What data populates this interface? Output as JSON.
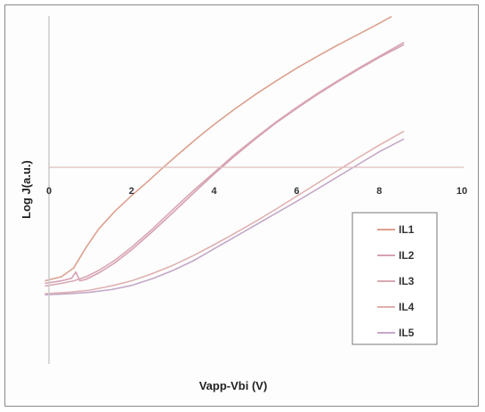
{
  "chart_data": {
    "type": "line",
    "title": "",
    "xlabel": "Vapp-Vbi (V)",
    "ylabel": "Log J(a.u.)",
    "xlim": [
      0,
      10
    ],
    "x_ticks": [
      0,
      2,
      4,
      6,
      8,
      10
    ],
    "x_tick_labels": [
      "0",
      "2",
      "4",
      "6",
      "8",
      "10"
    ],
    "y_ticks_shown": false,
    "y_zero_line": true,
    "grid": false,
    "legend_position": "right-lower",
    "series": [
      {
        "name": "IL1",
        "color": "#dca08e",
        "x": [
          -0.1,
          0.3,
          0.6,
          0.9,
          1.2,
          1.6,
          2.0,
          2.4,
          2.8,
          3.2,
          3.6,
          4.0,
          4.5,
          5.0,
          5.5,
          6.0,
          6.5,
          7.0,
          7.5,
          8.0,
          8.3
        ],
        "y": [
          -2.2,
          -2.12,
          -1.95,
          -1.55,
          -1.2,
          -0.85,
          -0.55,
          -0.27,
          0.02,
          0.3,
          0.57,
          0.83,
          1.13,
          1.41,
          1.67,
          1.92,
          2.15,
          2.37,
          2.58,
          2.79,
          2.92
        ]
      },
      {
        "name": "IL2",
        "color": "#d7a0b4",
        "x": [
          -0.1,
          0.3,
          0.55,
          0.65,
          0.75,
          0.9,
          1.2,
          1.6,
          2.0,
          2.5,
          3.0,
          3.5,
          4.0,
          4.5,
          5.0,
          5.5,
          6.0,
          6.5,
          7.0,
          7.5,
          8.0,
          8.6
        ],
        "y": [
          -2.25,
          -2.2,
          -2.15,
          -2.03,
          -2.2,
          -2.17,
          -2.05,
          -1.85,
          -1.6,
          -1.25,
          -0.88,
          -0.5,
          -0.13,
          0.22,
          0.55,
          0.86,
          1.14,
          1.41,
          1.66,
          1.9,
          2.13,
          2.38
        ]
      },
      {
        "name": "IL3",
        "color": "#d8a8b2",
        "x": [
          -0.1,
          0.3,
          0.6,
          0.9,
          1.2,
          1.6,
          2.0,
          2.5,
          3.0,
          3.5,
          4.0,
          4.5,
          5.0,
          5.5,
          6.0,
          6.5,
          7.0,
          7.5,
          8.0,
          8.6
        ],
        "y": [
          -2.3,
          -2.25,
          -2.2,
          -2.12,
          -2.0,
          -1.8,
          -1.55,
          -1.2,
          -0.82,
          -0.45,
          -0.1,
          0.25,
          0.57,
          0.88,
          1.16,
          1.43,
          1.68,
          1.92,
          2.15,
          2.42
        ]
      },
      {
        "name": "IL4",
        "color": "#e0b0b0",
        "x": [
          -0.1,
          0.5,
          1.0,
          1.5,
          2.0,
          2.5,
          3.0,
          3.5,
          4.0,
          4.5,
          5.0,
          5.5,
          6.0,
          6.5,
          7.0,
          7.5,
          8.0,
          8.6
        ],
        "y": [
          -2.45,
          -2.42,
          -2.38,
          -2.3,
          -2.2,
          -2.06,
          -1.9,
          -1.71,
          -1.5,
          -1.28,
          -1.05,
          -0.81,
          -0.56,
          -0.31,
          -0.06,
          0.19,
          0.43,
          0.7
        ]
      },
      {
        "name": "IL5",
        "color": "#c4a8c8",
        "x": [
          -0.1,
          0.5,
          1.0,
          1.5,
          2.0,
          2.5,
          3.0,
          3.5,
          4.0,
          4.5,
          5.0,
          5.5,
          6.0,
          6.5,
          7.0,
          7.5,
          8.0,
          8.6
        ],
        "y": [
          -2.47,
          -2.45,
          -2.42,
          -2.37,
          -2.29,
          -2.16,
          -2.0,
          -1.81,
          -1.58,
          -1.35,
          -1.12,
          -0.89,
          -0.66,
          -0.42,
          -0.18,
          0.06,
          0.3,
          0.55
        ]
      }
    ]
  }
}
